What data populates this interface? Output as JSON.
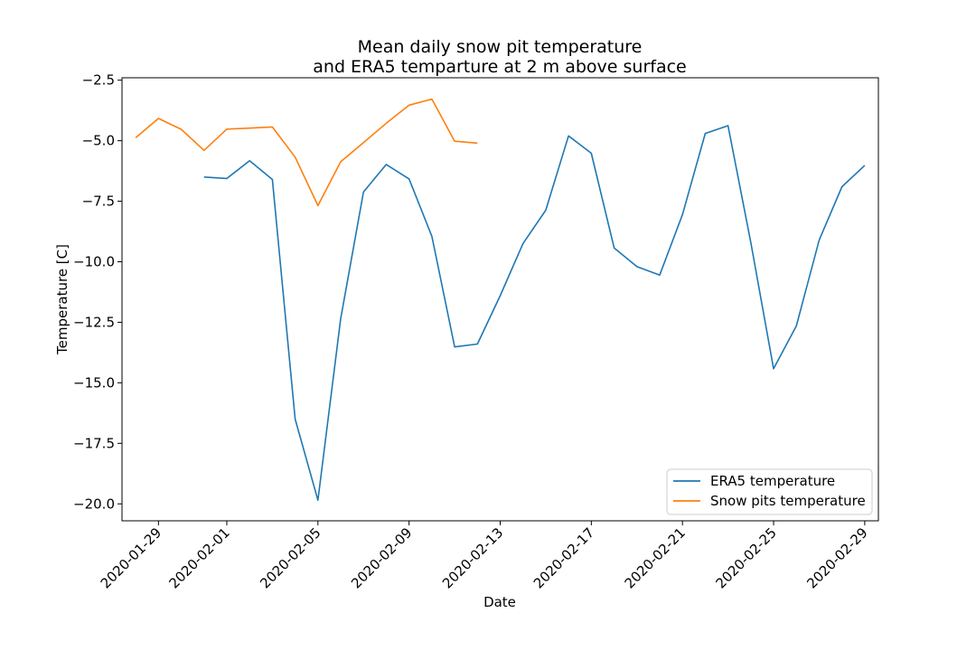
{
  "chart_data": {
    "type": "line",
    "title_line1": "Mean daily snow pit temperature",
    "title_line2": "and ERA5 temparture at 2 m above surface",
    "xlabel": "Date",
    "ylabel": "Temperature [C]",
    "xlim": [
      "2020-01-27",
      "2020-02-29"
    ],
    "ylim": [
      -20.7,
      -2.4
    ],
    "x_ticks": [
      "2020-01-29",
      "2020-02-01",
      "2020-02-05",
      "2020-02-09",
      "2020-02-13",
      "2020-02-17",
      "2020-02-21",
      "2020-02-25",
      "2020-02-29"
    ],
    "y_ticks": [
      -2.5,
      -5.0,
      -7.5,
      -10.0,
      -12.5,
      -15.0,
      -17.5,
      -20.0
    ],
    "y_tick_labels": [
      "−2.5",
      "−5.0",
      "−7.5",
      "−10.0",
      "−12.5",
      "−15.0",
      "−17.5",
      "−20.0"
    ],
    "legend_position": "lower-right",
    "grid": false,
    "series": [
      {
        "name": "ERA5 temperature",
        "color": "#1f77b4",
        "points": [
          {
            "x": "2020-01-31",
            "y": -6.5
          },
          {
            "x": "2020-02-01",
            "y": -6.56
          },
          {
            "x": "2020-02-02",
            "y": -5.83
          },
          {
            "x": "2020-02-03",
            "y": -6.6
          },
          {
            "x": "2020-02-04",
            "y": -16.5
          },
          {
            "x": "2020-02-05",
            "y": -19.85
          },
          {
            "x": "2020-02-06",
            "y": -12.35
          },
          {
            "x": "2020-02-07",
            "y": -7.12
          },
          {
            "x": "2020-02-08",
            "y": -5.98
          },
          {
            "x": "2020-02-09",
            "y": -6.58
          },
          {
            "x": "2020-02-10",
            "y": -8.95
          },
          {
            "x": "2020-02-11",
            "y": -13.52
          },
          {
            "x": "2020-02-12",
            "y": -13.4
          },
          {
            "x": "2020-02-13",
            "y": -11.4
          },
          {
            "x": "2020-02-14",
            "y": -9.25
          },
          {
            "x": "2020-02-15",
            "y": -7.87
          },
          {
            "x": "2020-02-16",
            "y": -4.8
          },
          {
            "x": "2020-02-17",
            "y": -5.52
          },
          {
            "x": "2020-02-18",
            "y": -9.43
          },
          {
            "x": "2020-02-19",
            "y": -10.2
          },
          {
            "x": "2020-02-20",
            "y": -10.55
          },
          {
            "x": "2020-02-21",
            "y": -8.05
          },
          {
            "x": "2020-02-22",
            "y": -4.7
          },
          {
            "x": "2020-02-23",
            "y": -4.38
          },
          {
            "x": "2020-02-24",
            "y": -9.2
          },
          {
            "x": "2020-02-25",
            "y": -14.42
          },
          {
            "x": "2020-02-26",
            "y": -12.65
          },
          {
            "x": "2020-02-27",
            "y": -9.1
          },
          {
            "x": "2020-02-28",
            "y": -6.9
          },
          {
            "x": "2020-02-29",
            "y": -6.02
          }
        ]
      },
      {
        "name": "Snow pits temperature",
        "color": "#ff7f0e",
        "points": [
          {
            "x": "2020-01-28",
            "y": -4.88
          },
          {
            "x": "2020-01-29",
            "y": -4.08
          },
          {
            "x": "2020-01-30",
            "y": -4.53
          },
          {
            "x": "2020-01-31",
            "y": -5.4
          },
          {
            "x": "2020-02-01",
            "y": -4.52
          },
          {
            "x": "2020-02-02",
            "y": -4.48
          },
          {
            "x": "2020-02-03",
            "y": -4.43
          },
          {
            "x": "2020-02-04",
            "y": -5.68
          },
          {
            "x": "2020-02-05",
            "y": -7.68
          },
          {
            "x": "2020-02-06",
            "y": -5.87
          },
          {
            "x": "2020-02-07",
            "y": -5.08
          },
          {
            "x": "2020-02-08",
            "y": -4.28
          },
          {
            "x": "2020-02-09",
            "y": -3.53
          },
          {
            "x": "2020-02-10",
            "y": -3.28
          },
          {
            "x": "2020-02-11",
            "y": -5.02
          },
          {
            "x": "2020-02-12",
            "y": -5.1
          }
        ]
      }
    ]
  }
}
